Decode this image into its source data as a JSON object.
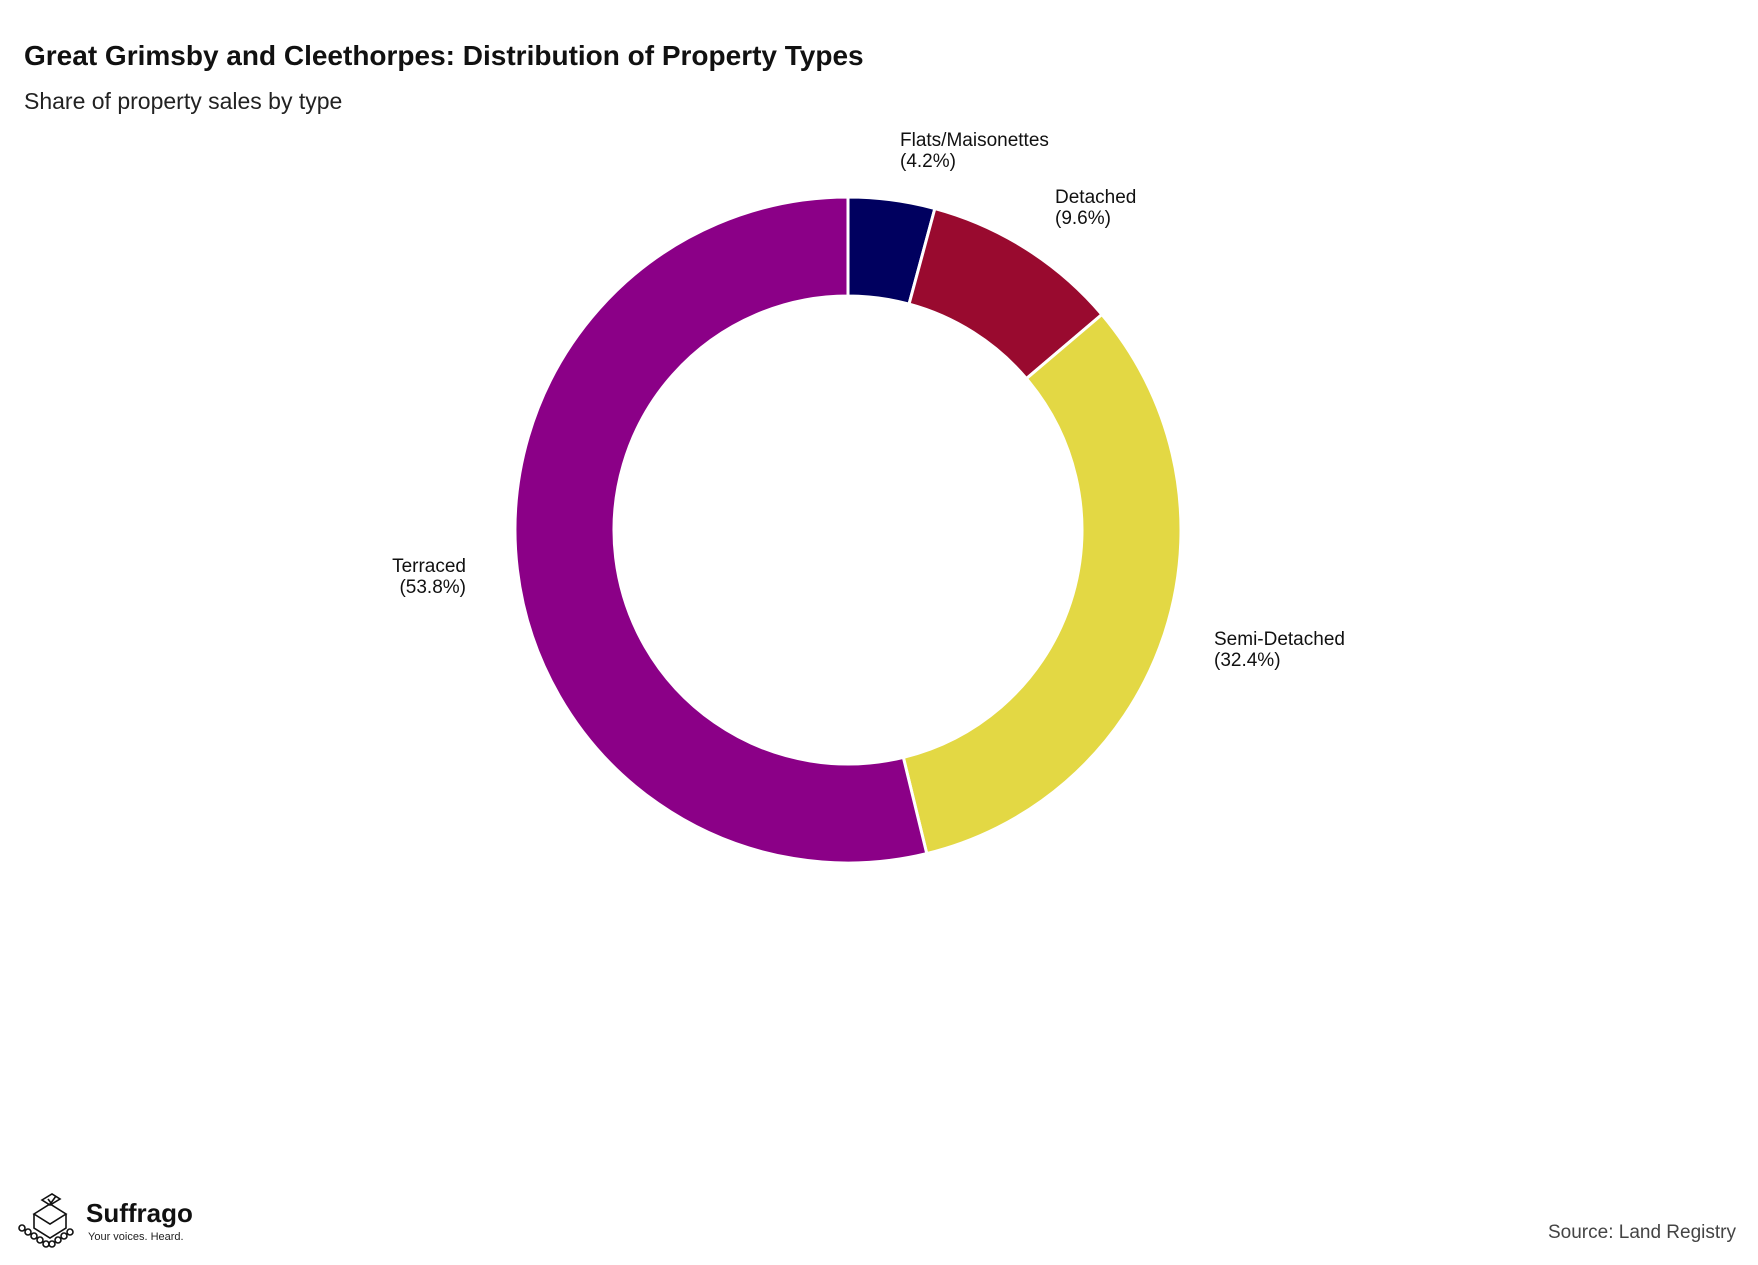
{
  "title": "Great Grimsby and Cleethorpes: Distribution of Property Types",
  "subtitle": "Share of property sales by type",
  "source": "Source: Land Registry",
  "logo": {
    "name": "Suffrago",
    "tagline": "Your voices. Heard."
  },
  "chart_data": {
    "type": "pie",
    "variant": "donut",
    "title": "Great Grimsby and Cleethorpes: Distribution of Property Types",
    "subtitle": "Share of property sales by type",
    "slices": [
      {
        "label": "Flats/Maisonettes",
        "value": 4.2,
        "value_label": "(4.2%)",
        "color": "#00005f"
      },
      {
        "label": "Detached",
        "value": 9.6,
        "value_label": "(9.6%)",
        "color": "#990a2f"
      },
      {
        "label": "Semi-Detached",
        "value": 32.4,
        "value_label": "(32.4%)",
        "color": "#e3d844"
      },
      {
        "label": "Terraced",
        "value": 53.8,
        "value_label": "(53.8%)",
        "color": "#8b0087"
      }
    ],
    "start_angle": "12 o'clock",
    "direction": "clockwise",
    "legend": "none"
  }
}
